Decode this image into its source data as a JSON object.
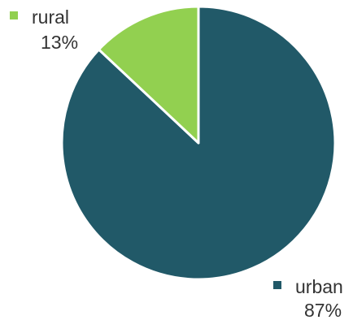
{
  "chart_data": {
    "type": "pie",
    "slices": [
      {
        "label": "urban",
        "value": 87,
        "display": "87%",
        "color": "#215968"
      },
      {
        "label": "rural",
        "value": 13,
        "display": "13%",
        "color": "#92d050"
      }
    ],
    "slice_border_color": "#ffffff"
  }
}
